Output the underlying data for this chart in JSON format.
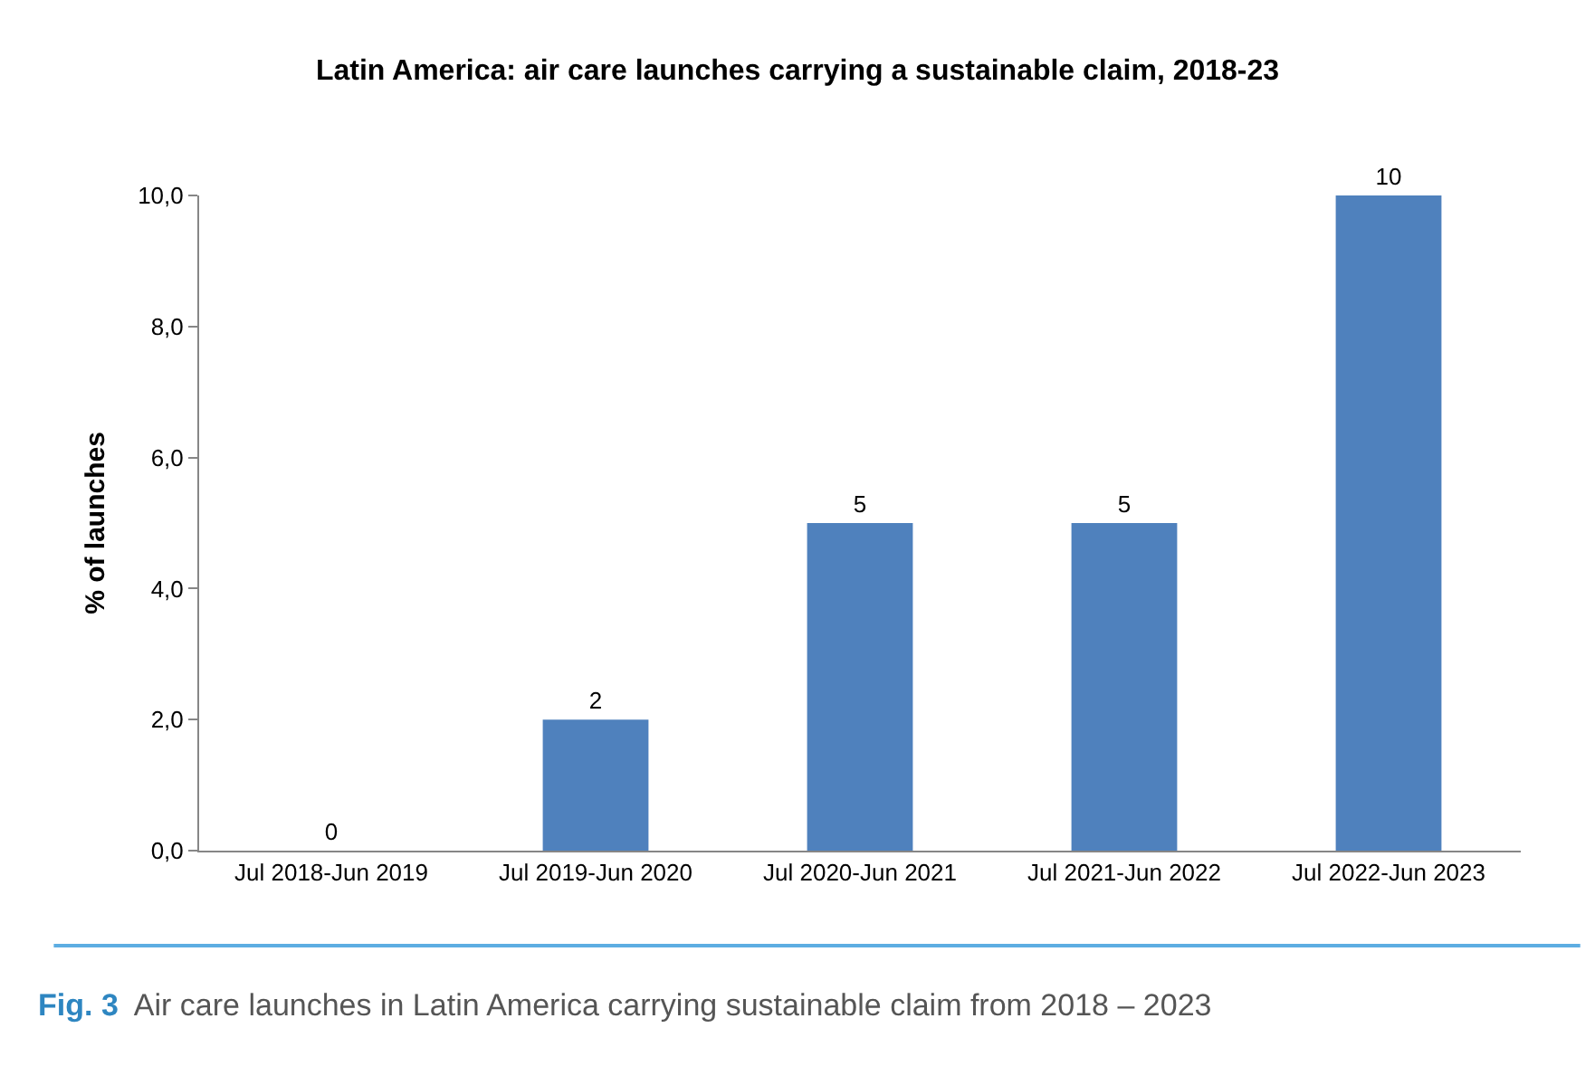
{
  "chart_data": {
    "type": "bar",
    "title": "Latin America: air care launches carrying a sustainable claim, 2018-23",
    "ylabel": "% of launches",
    "categories": [
      "Jul 2018-Jun 2019",
      "Jul 2019-Jun 2020",
      "Jul 2020-Jun 2021",
      "Jul 2021-Jun 2022",
      "Jul 2022-Jun 2023"
    ],
    "values": [
      0,
      2,
      5,
      5,
      10
    ],
    "color": "#4f81bd",
    "data_labels": true,
    "ylim": [
      0,
      10
    ],
    "yticks": [
      {
        "value": 0,
        "label": "0,0"
      },
      {
        "value": 2,
        "label": "2,0"
      },
      {
        "value": 4,
        "label": "4,0"
      },
      {
        "value": 6,
        "label": "6,0"
      },
      {
        "value": 8,
        "label": "8,0"
      },
      {
        "value": 10,
        "label": "10,0"
      }
    ],
    "grid": false,
    "legend": false,
    "annotations": [
      "Fig. 3",
      "Air care launches in Latin America carrying sustainable claim from 2018 – 2023"
    ]
  }
}
